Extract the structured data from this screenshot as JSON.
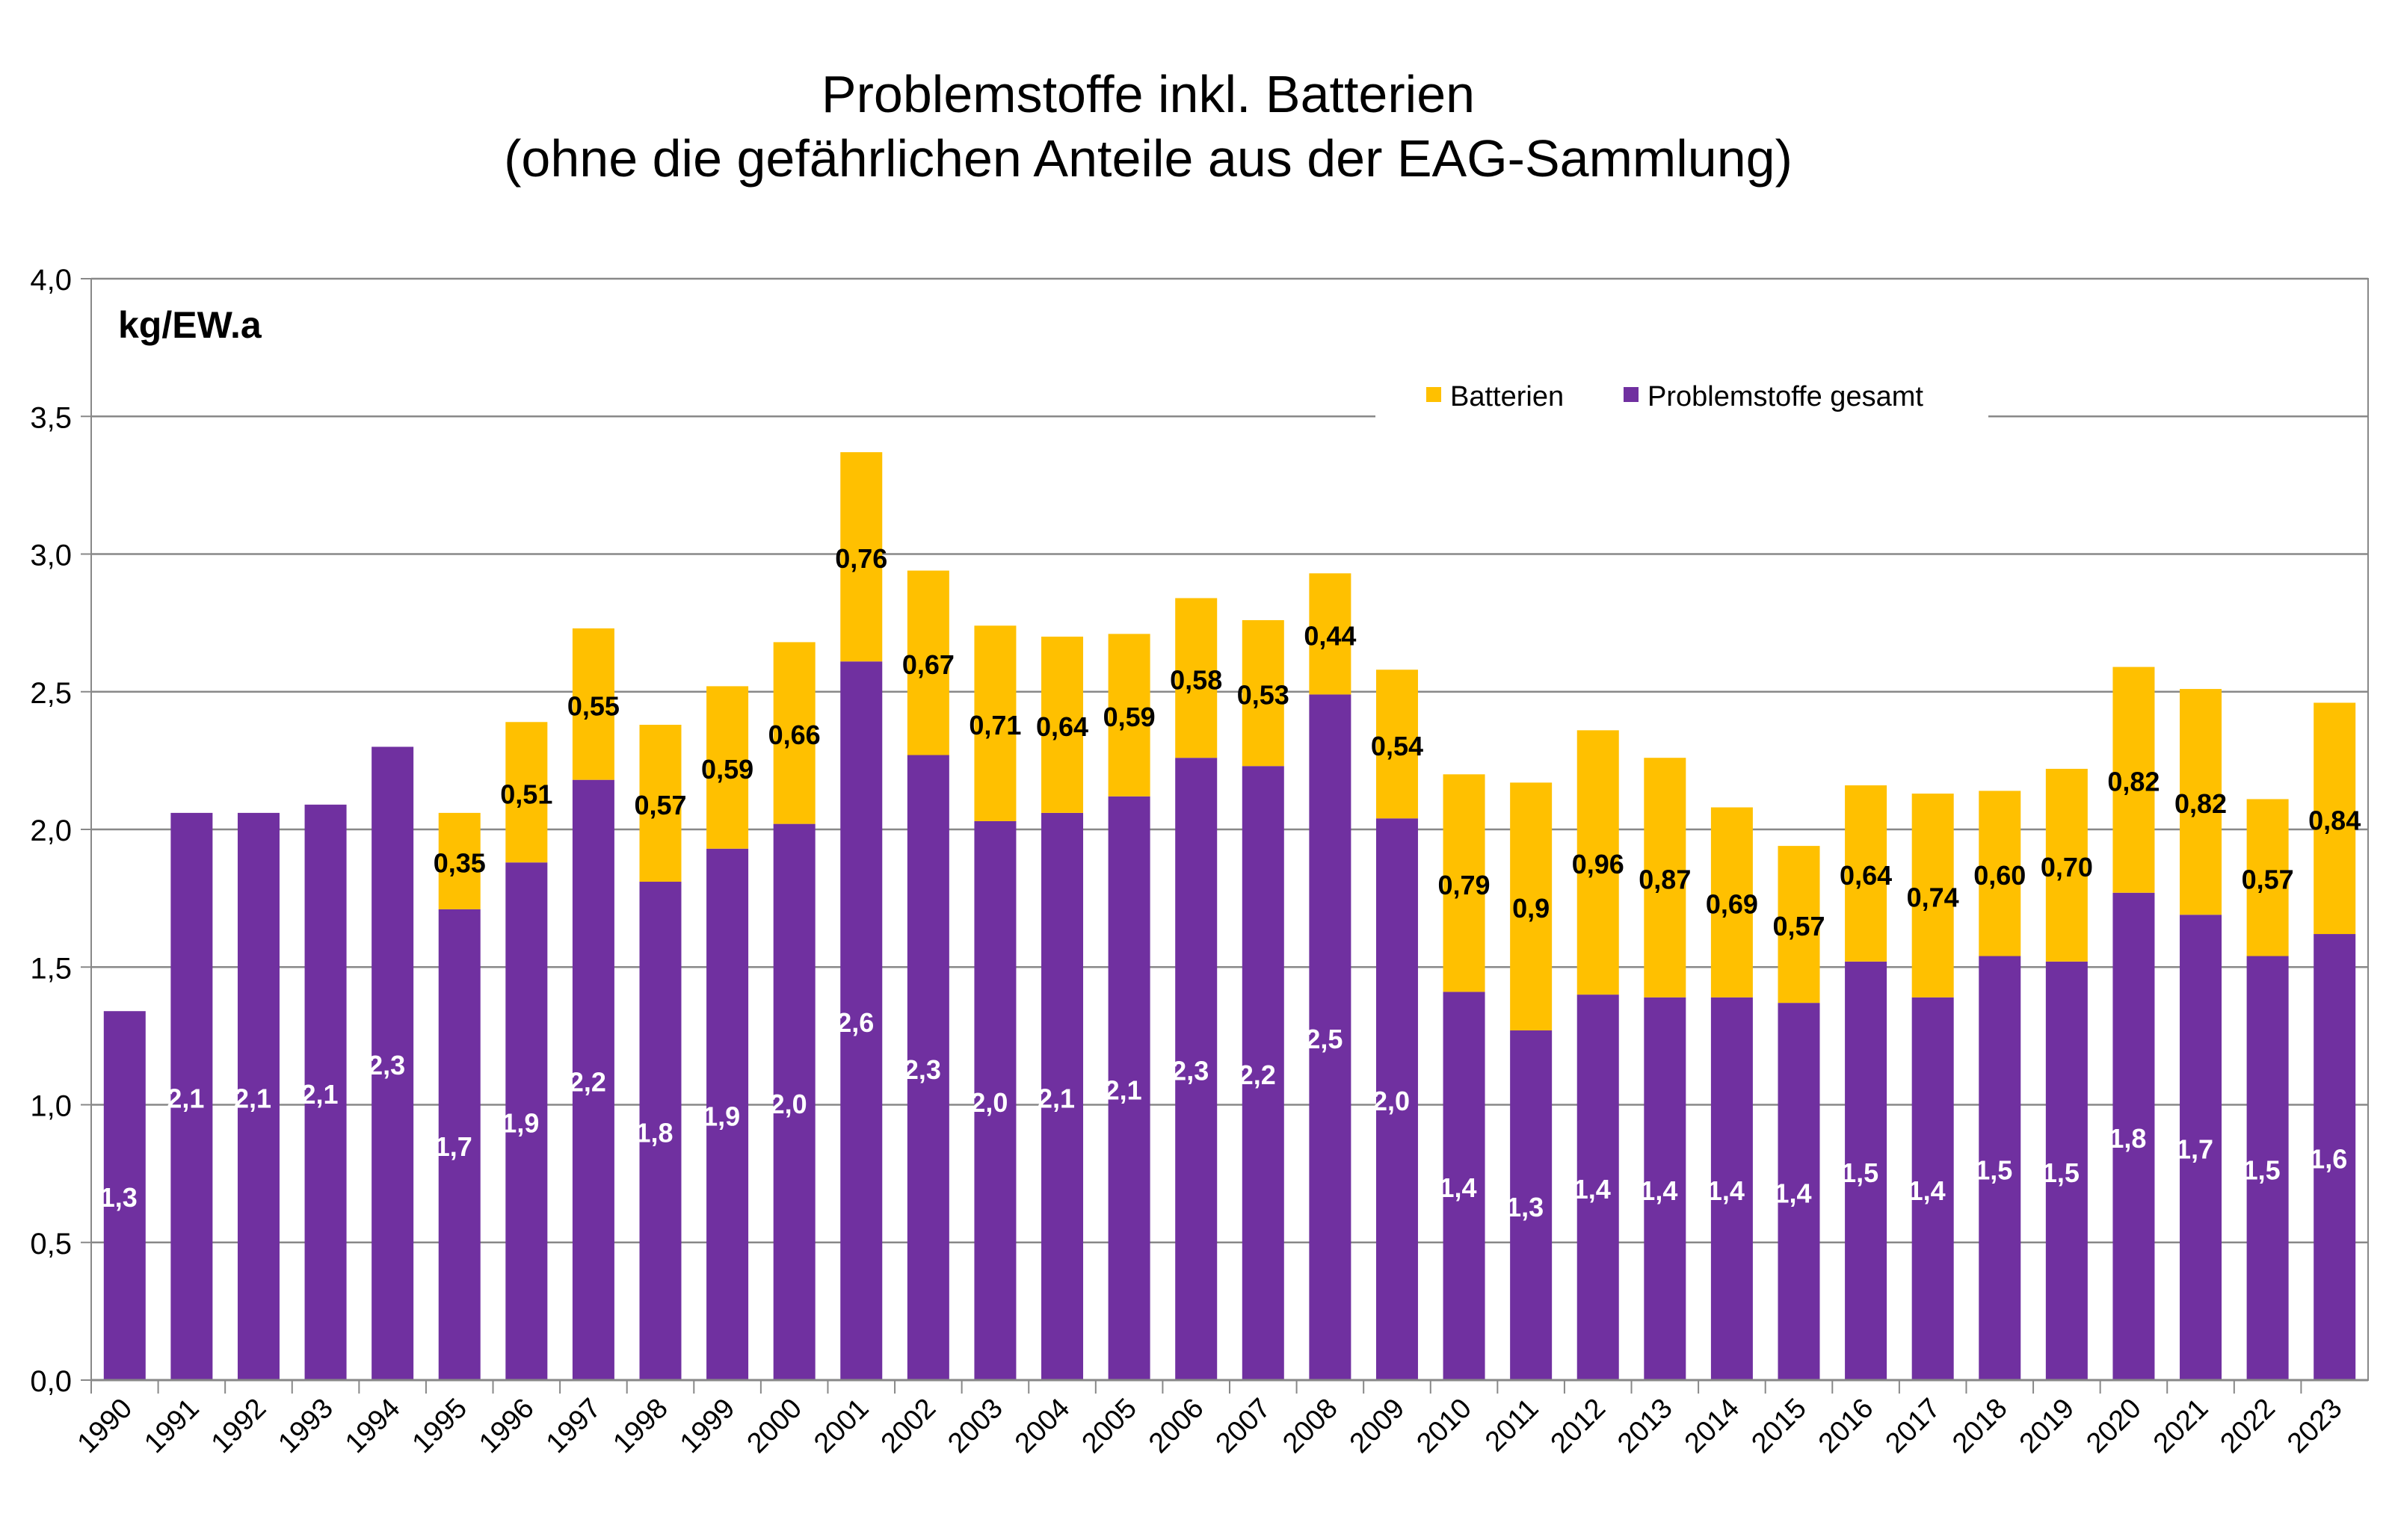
{
  "chart_data": {
    "type": "bar",
    "stacked": true,
    "title": "Problemstoffe inkl. Batterien",
    "subtitle": "(ohne die gefährlichen Anteile aus der EAG-Sammlung)",
    "unit_label": "kg/EW.a",
    "xlabel": "",
    "ylabel": "",
    "ylim": [
      0,
      4
    ],
    "yticks": [
      "0,0",
      "0,5",
      "1,0",
      "1,5",
      "2,0",
      "2,5",
      "3,0",
      "3,5",
      "4,0"
    ],
    "grid": true,
    "legend_position": "top-right",
    "categories": [
      "1990",
      "1991",
      "1992",
      "1993",
      "1994",
      "1995",
      "1996",
      "1997",
      "1998",
      "1999",
      "2000",
      "2001",
      "2002",
      "2003",
      "2004",
      "2005",
      "2006",
      "2007",
      "2008",
      "2009",
      "2010",
      "2011",
      "2012",
      "2013",
      "2014",
      "2015",
      "2016",
      "2017",
      "2018",
      "2019",
      "2020",
      "2021",
      "2022",
      "2023"
    ],
    "series": [
      {
        "name": "Problemstoffe gesamt",
        "color": "#7030A0",
        "values": [
          1.34,
          2.06,
          2.06,
          2.09,
          2.3,
          1.71,
          1.88,
          2.18,
          1.81,
          1.93,
          2.02,
          2.61,
          2.27,
          2.03,
          2.06,
          2.12,
          2.26,
          2.23,
          2.49,
          2.04,
          1.41,
          1.27,
          1.4,
          1.39,
          1.39,
          1.37,
          1.52,
          1.39,
          1.54,
          1.52,
          1.77,
          1.69,
          1.54,
          1.62
        ],
        "labels": [
          "1,3",
          "2,1",
          "2,1",
          "2,1",
          "2,3",
          "1,7",
          "1,9",
          "2,2",
          "1,8",
          "1,9",
          "2,0",
          "2,6",
          "2,3",
          "2,0",
          "2,1",
          "2,1",
          "2,3",
          "2,2",
          "2,5",
          "2,0",
          "1,4",
          "1,3",
          "1,4",
          "1,4",
          "1,4",
          "1,4",
          "1,5",
          "1,4",
          "1,5",
          "1,5",
          "1,8",
          "1,7",
          "1,5",
          "1,6"
        ]
      },
      {
        "name": "Batterien",
        "color": "#FFC000",
        "values": [
          0,
          0,
          0,
          0,
          0,
          0.35,
          0.51,
          0.55,
          0.57,
          0.59,
          0.66,
          0.76,
          0.67,
          0.71,
          0.64,
          0.59,
          0.58,
          0.53,
          0.44,
          0.54,
          0.79,
          0.9,
          0.96,
          0.87,
          0.69,
          0.57,
          0.64,
          0.74,
          0.6,
          0.7,
          0.82,
          0.82,
          0.57,
          0.84
        ],
        "labels": [
          "",
          "",
          "",
          "",
          "",
          "0,35",
          "0,51",
          "0,55",
          "0,57",
          "0,59",
          "0,66",
          "0,76",
          "0,67",
          "0,71",
          "0,64",
          "0,59",
          "0,58",
          "0,53",
          "0,44",
          "0,54",
          "0,79",
          "0,9",
          "0,96",
          "0,87",
          "0,69",
          "0,57",
          "0,64",
          "0,74",
          "0,60",
          "0,70",
          "0,82",
          "0,82",
          "0,57",
          "0,84"
        ]
      }
    ]
  }
}
